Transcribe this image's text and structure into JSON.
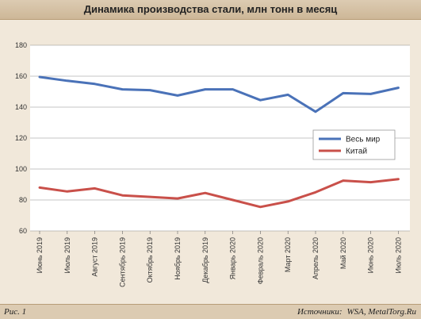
{
  "title": "Динамика производства стали, млн тонн в месяц",
  "footer": {
    "figure_label": "Рис. 1",
    "sources_label": "Источники:",
    "sources_value": "WSA, MetalTorg.Ru"
  },
  "colors": {
    "world": "#4a72b8",
    "china": "#c9504a",
    "page_bg": "#f1e8da",
    "plot_bg": "#ffffff"
  },
  "chart_data": {
    "type": "line",
    "title": "Динамика производства стали, млн тонн в месяц",
    "categories": [
      "Июнь 2019",
      "Июль 2019",
      "Август 2019",
      "Сентябрь 2019",
      "Октябрь 2019",
      "Ноябрь 2019",
      "Декабрь 2019",
      "Январь 2020",
      "Февраль 2020",
      "Март 2020",
      "Апрель 2020",
      "Май 2020",
      "Июнь 2020",
      "Июль 2020"
    ],
    "series": [
      {
        "name": "Весь мир",
        "values": [
          159.5,
          157,
          155,
          151.5,
          151,
          147.5,
          151.5,
          151.5,
          144.5,
          148,
          137,
          149,
          148.5,
          152.5
        ]
      },
      {
        "name": "Китай",
        "values": [
          88,
          85.5,
          87.5,
          83,
          82,
          81,
          84.5,
          80,
          75.5,
          79,
          85,
          92.5,
          91.5,
          93.5
        ]
      }
    ],
    "ylim": [
      60,
      180
    ],
    "yticks": [
      60,
      80,
      100,
      120,
      140,
      160,
      180
    ],
    "grid": "horizontal",
    "legend_position": "right-center"
  }
}
